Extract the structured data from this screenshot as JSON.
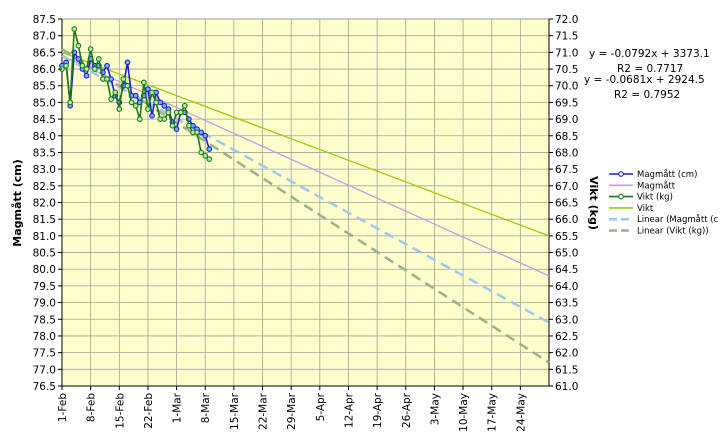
{
  "chart_data": {
    "type": "line",
    "y_left": {
      "label": "Magmått (cm)",
      "range": [
        76.5,
        87.5
      ],
      "step": 0.5,
      "ticks": [
        "76.5",
        "77.0",
        "77.5",
        "78.0",
        "78.5",
        "79.0",
        "79.5",
        "80.0",
        "80.5",
        "81.0",
        "81.5",
        "82.0",
        "82.5",
        "83.0",
        "83.5",
        "84.0",
        "84.5",
        "85.0",
        "85.5",
        "86.0",
        "86.5",
        "87.0",
        "87.5"
      ]
    },
    "y_right": {
      "label": "Vikt (kg)",
      "range": [
        61.0,
        72.0
      ],
      "step": 0.5,
      "ticks": [
        "61.0",
        "61.5",
        "62.0",
        "62.5",
        "63.0",
        "63.5",
        "64.0",
        "64.5",
        "65.0",
        "65.5",
        "66.0",
        "66.5",
        "67.0",
        "67.5",
        "68.0",
        "68.5",
        "69.0",
        "69.5",
        "70.0",
        "70.5",
        "71.0",
        "71.5",
        "72.0"
      ]
    },
    "x_axis": {
      "range_days": [
        0,
        119
      ],
      "tick_step_days": 7,
      "ticks": [
        "1-Feb",
        "8-Feb",
        "15-Feb",
        "22-Feb",
        "1-Mar",
        "8-Mar",
        "15-Mar",
        "22-Mar",
        "29-Mar",
        "5-Apr",
        "12-Apr",
        "19-Apr",
        "26-Apr",
        "3-May",
        "10-May",
        "17-May",
        "24-May"
      ]
    },
    "series": [
      {
        "name": "Magmått (cm)",
        "axis": "left",
        "color": "#1f1fd0",
        "marker_fill": "#6fb3ff",
        "days": [
          0,
          1,
          2,
          3,
          4,
          5,
          6,
          7,
          8,
          9,
          10,
          11,
          12,
          13,
          14,
          15,
          16,
          17,
          18,
          19,
          20,
          21,
          22,
          23,
          24,
          25,
          26,
          27,
          28,
          29,
          30,
          31,
          32,
          33,
          34,
          35,
          36
        ],
        "values": [
          86.1,
          86.2,
          84.9,
          86.5,
          86.3,
          86.0,
          85.8,
          86.3,
          86.1,
          86.1,
          85.9,
          86.1,
          85.7,
          85.2,
          85.0,
          85.5,
          86.2,
          85.2,
          85.2,
          85.0,
          85.2,
          85.4,
          84.6,
          85.3,
          85.0,
          84.9,
          84.8,
          84.4,
          84.2,
          84.7,
          84.7,
          84.5,
          84.3,
          84.2,
          84.1,
          84.0,
          83.6
        ]
      },
      {
        "name": "Vikt (kg)",
        "axis": "left",
        "color": "#1a7a1a",
        "marker_fill": "#b7f0a0",
        "days": [
          0,
          1,
          2,
          3,
          4,
          5,
          6,
          7,
          8,
          9,
          10,
          11,
          12,
          13,
          14,
          15,
          16,
          17,
          18,
          19,
          20,
          21,
          22,
          23,
          24,
          25,
          26,
          27,
          28,
          29,
          30,
          31,
          32,
          33,
          34,
          35,
          36
        ],
        "values": [
          86.0,
          86.1,
          85.0,
          87.2,
          86.7,
          86.1,
          86.0,
          86.6,
          86.0,
          86.3,
          85.7,
          85.7,
          85.1,
          85.3,
          84.8,
          85.7,
          85.5,
          85.0,
          84.9,
          84.5,
          85.6,
          84.8,
          85.3,
          85.0,
          84.5,
          84.5,
          84.7,
          84.3,
          84.7,
          84.7,
          84.9,
          84.3,
          84.1,
          84.1,
          83.5,
          83.4,
          83.3
        ]
      },
      {
        "name": "Magmått",
        "axis": "left",
        "color": "#c39be6",
        "days": [
          0,
          119
        ],
        "values": [
          86.4,
          79.8
        ]
      },
      {
        "name": "Vikt",
        "axis": "left",
        "color": "#99cc11",
        "days": [
          0,
          119
        ],
        "values": [
          86.5,
          81.0
        ]
      },
      {
        "name": "Linear (Magmått (c",
        "axis": "left",
        "color": "#9dc8ee",
        "dashed": true,
        "days": [
          0,
          119
        ],
        "values": [
          86.4,
          78.4
        ]
      },
      {
        "name": "Linear (Vikt (kg))",
        "axis": "left",
        "color": "#97b38a",
        "dashed": true,
        "days": [
          0,
          119
        ],
        "values": [
          86.6,
          77.2
        ]
      }
    ],
    "legend": {
      "position": "right",
      "entries": [
        {
          "label": "Magmått (cm)",
          "color": "#1f1fd0",
          "marker": true,
          "dashed": false
        },
        {
          "label": "Magmått",
          "color": "#c39be6",
          "marker": false,
          "dashed": false
        },
        {
          "label": "Vikt (kg)",
          "color": "#1a7a1a",
          "marker": true,
          "dashed": false
        },
        {
          "label": "Vikt",
          "color": "#99cc11",
          "marker": false,
          "dashed": false
        },
        {
          "label": "Linear (Magmått (c",
          "color": "#9dc8ee",
          "marker": false,
          "dashed": true
        },
        {
          "label": "Linear (Vikt (kg))",
          "color": "#97b38a",
          "marker": false,
          "dashed": true
        }
      ]
    },
    "annotations": {
      "eq1": "y = -0.0792x + 3373.1",
      "r2_1": "R2 = 0.7717",
      "eq2": "y = -0.0681x + 2924.5",
      "r2_2": "R2 = 0.7952"
    },
    "plot_background": "#ffffcc",
    "grid": true
  }
}
